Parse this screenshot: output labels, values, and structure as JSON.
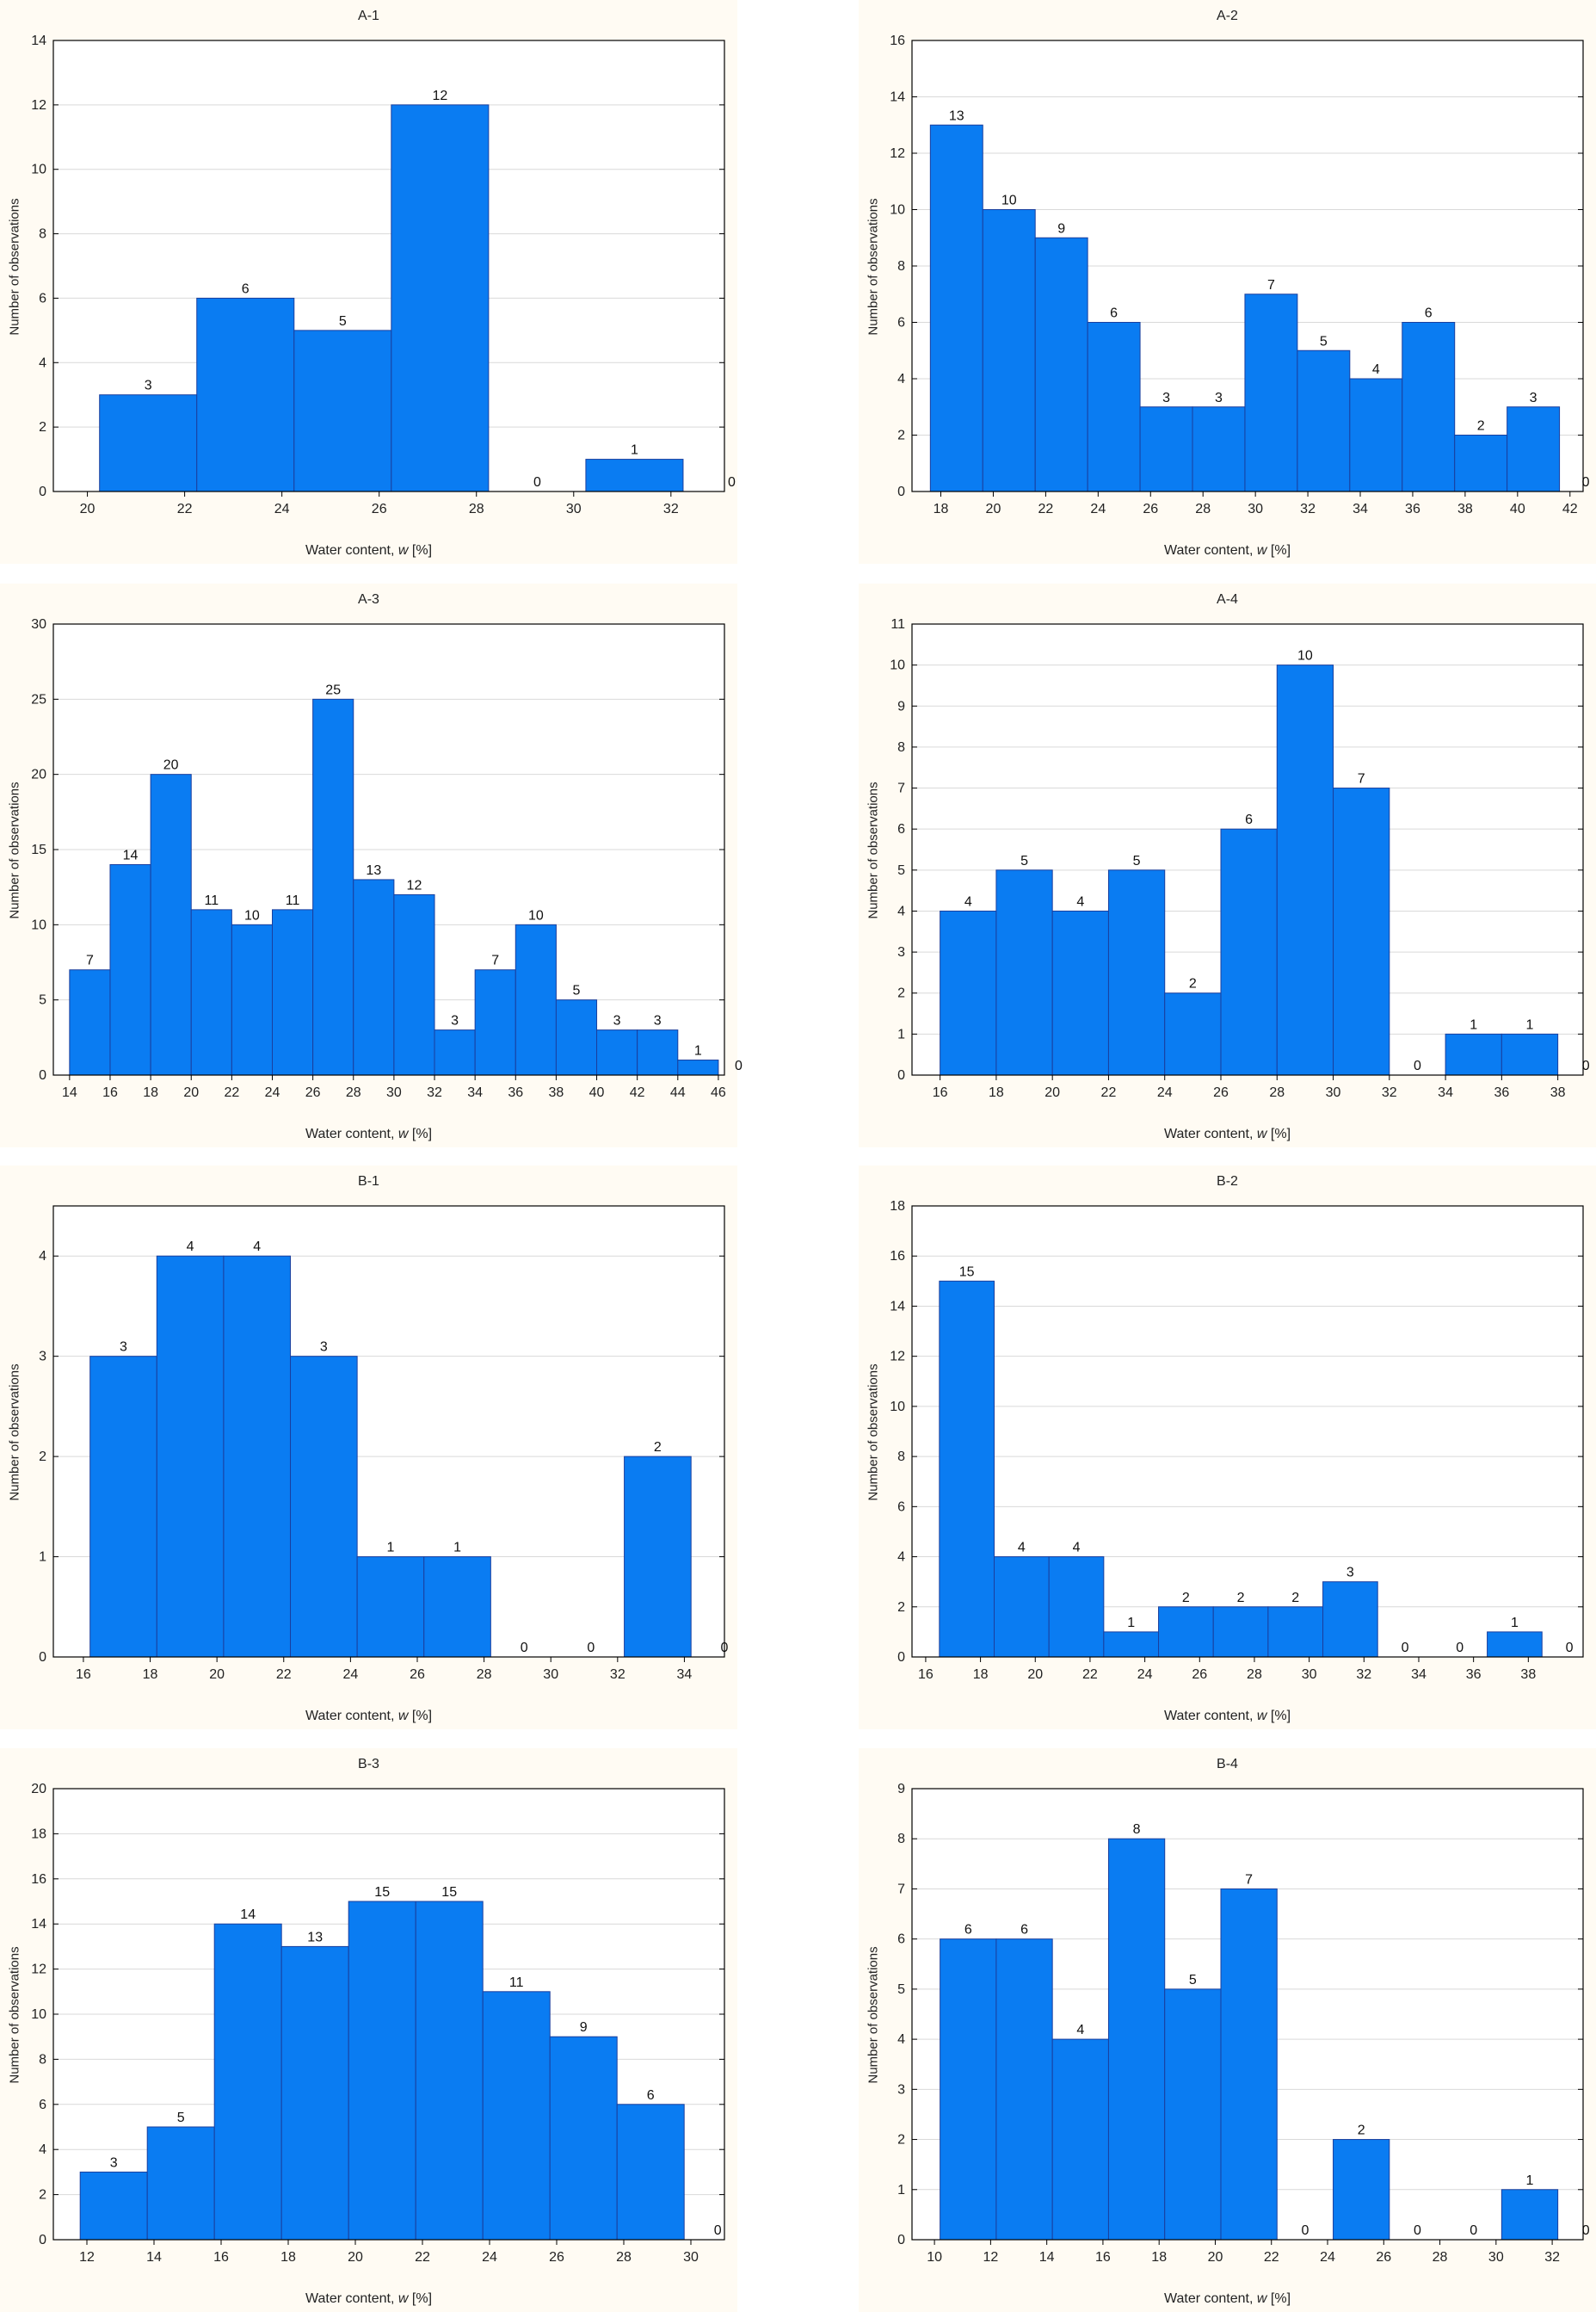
{
  "common": {
    "ylabel": "Number of observations",
    "xlabel_prefix": "Water content, ",
    "xlabel_var": "w",
    "xlabel_suffix": " [%]",
    "bar_color": "#0a7cf2",
    "bar_edge": "#1a3f9e"
  },
  "chart_data": [
    {
      "type": "bar",
      "title": "A-1",
      "xlabel": "Water content, w [%]",
      "ylabel": "Number of observations",
      "bin_start": 20.25,
      "bin_width": 2.0,
      "values": [
        3,
        6,
        5,
        12,
        0,
        1,
        0
      ],
      "xlim": [
        19.3,
        33.1
      ],
      "xticks": [
        20,
        22,
        24,
        26,
        28,
        30,
        32
      ],
      "ylim": [
        0,
        14
      ],
      "yticks": [
        0,
        2,
        4,
        6,
        8,
        10,
        12,
        14
      ],
      "grid": true
    },
    {
      "type": "bar",
      "title": "A-2",
      "xlabel": "Water content, w [%]",
      "ylabel": "Number of observations",
      "bin_start": 17.6,
      "bin_width": 2.0,
      "values": [
        13,
        10,
        9,
        6,
        3,
        3,
        7,
        5,
        4,
        6,
        2,
        3,
        0
      ],
      "xlim": [
        16.9,
        42.5
      ],
      "xticks": [
        18,
        20,
        22,
        24,
        26,
        28,
        30,
        32,
        34,
        36,
        38,
        40,
        42
      ],
      "ylim": [
        0,
        16
      ],
      "yticks": [
        0,
        2,
        4,
        6,
        8,
        10,
        12,
        14,
        16
      ],
      "grid": true
    },
    {
      "type": "bar",
      "title": "A-3",
      "xlabel": "Water content, w [%]",
      "ylabel": "Number of observations",
      "bin_start": 14.0,
      "bin_width": 2.0,
      "values": [
        7,
        14,
        20,
        11,
        10,
        11,
        25,
        13,
        12,
        3,
        7,
        10,
        5,
        3,
        3,
        1,
        0
      ],
      "xlim": [
        13.2,
        46.3
      ],
      "xticks": [
        14,
        16,
        18,
        20,
        22,
        24,
        26,
        28,
        30,
        32,
        34,
        36,
        38,
        40,
        42,
        44,
        46
      ],
      "ylim": [
        0,
        30
      ],
      "yticks": [
        0,
        5,
        10,
        15,
        20,
        25,
        30
      ],
      "grid": true
    },
    {
      "type": "bar",
      "title": "A-4",
      "xlabel": "Water content, w [%]",
      "ylabel": "Number of observations",
      "bin_start": 16.0,
      "bin_width": 2.0,
      "values": [
        4,
        5,
        4,
        5,
        2,
        6,
        10,
        7,
        0,
        1,
        1,
        0
      ],
      "xlim": [
        15.0,
        38.9
      ],
      "xticks": [
        16,
        18,
        20,
        22,
        24,
        26,
        28,
        30,
        32,
        34,
        36,
        38
      ],
      "ylim": [
        0,
        11
      ],
      "yticks": [
        0,
        1,
        2,
        3,
        4,
        5,
        6,
        7,
        8,
        9,
        10,
        11
      ],
      "grid": true
    },
    {
      "type": "bar",
      "title": "B-1",
      "xlabel": "Water content, w [%]",
      "ylabel": "Number of observations",
      "bin_start": 16.2,
      "bin_width": 2.0,
      "values": [
        3,
        4,
        4,
        3,
        1,
        1,
        0,
        0,
        2,
        0
      ],
      "xlim": [
        15.1,
        35.2
      ],
      "xticks": [
        16,
        18,
        20,
        22,
        24,
        26,
        28,
        30,
        32,
        34
      ],
      "ylim": [
        0,
        4.5
      ],
      "yticks": [
        0,
        1,
        2,
        3,
        4
      ],
      "grid": true
    },
    {
      "type": "bar",
      "title": "B-2",
      "xlabel": "Water content, w [%]",
      "ylabel": "Number of observations",
      "bin_start": 16.5,
      "bin_width": 2.0,
      "values": [
        15,
        4,
        4,
        1,
        2,
        2,
        2,
        3,
        0,
        0,
        1,
        0
      ],
      "xlim": [
        15.5,
        40.0
      ],
      "xticks": [
        16,
        18,
        20,
        22,
        24,
        26,
        28,
        30,
        32,
        34,
        36,
        38
      ],
      "ylim": [
        0,
        18
      ],
      "yticks": [
        0,
        2,
        4,
        6,
        8,
        10,
        12,
        14,
        16,
        18
      ],
      "grid": true
    },
    {
      "type": "bar",
      "title": "B-3",
      "xlabel": "Water content, w [%]",
      "ylabel": "Number of observations",
      "bin_start": 11.8,
      "bin_width": 2.0,
      "values": [
        3,
        5,
        14,
        13,
        15,
        15,
        11,
        9,
        6,
        0
      ],
      "xlim": [
        11.0,
        31.0
      ],
      "xticks": [
        12,
        14,
        16,
        18,
        20,
        22,
        24,
        26,
        28,
        30
      ],
      "ylim": [
        0,
        20
      ],
      "yticks": [
        0,
        2,
        4,
        6,
        8,
        10,
        12,
        14,
        16,
        18,
        20
      ],
      "grid": true
    },
    {
      "type": "bar",
      "title": "B-4",
      "xlabel": "Water content, w [%]",
      "ylabel": "Number of observations",
      "bin_start": 10.2,
      "bin_width": 2.0,
      "values": [
        6,
        6,
        4,
        8,
        5,
        7,
        0,
        2,
        0,
        0,
        1,
        0
      ],
      "xlim": [
        9.2,
        33.1
      ],
      "xticks": [
        10,
        12,
        14,
        16,
        18,
        20,
        22,
        24,
        26,
        28,
        30,
        32
      ],
      "ylim": [
        0,
        9
      ],
      "yticks": [
        0,
        1,
        2,
        3,
        4,
        5,
        6,
        7,
        8,
        9
      ],
      "grid": true
    }
  ]
}
